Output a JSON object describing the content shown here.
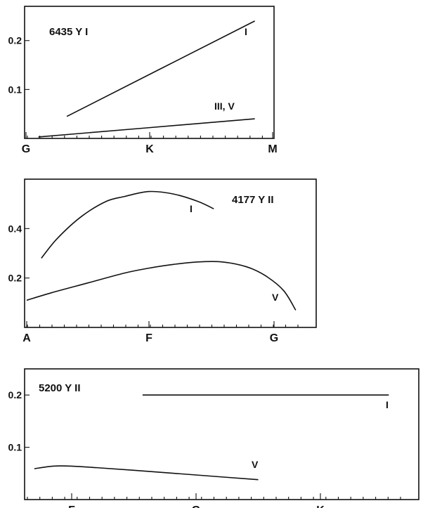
{
  "chart_data": [
    {
      "type": "line",
      "title": "6435  Y I",
      "x_categories": [
        "G",
        "K",
        "M"
      ],
      "ylim": [
        0,
        0.27
      ],
      "y_ticks": [
        0.1,
        0.2
      ],
      "y_tick_labels": [
        "0.1",
        "0.2"
      ],
      "series": [
        {
          "name": "I",
          "x": [
            0.33,
            1.85
          ],
          "y": [
            0.045,
            0.24
          ]
        },
        {
          "name": "III, V",
          "x": [
            0.1,
            1.85
          ],
          "y": [
            0.003,
            0.04
          ]
        }
      ]
    },
    {
      "type": "line",
      "title": "4177  Y II",
      "x_categories": [
        "A",
        "F",
        "G"
      ],
      "ylim": [
        0,
        0.6
      ],
      "y_ticks": [
        0.2,
        0.4
      ],
      "y_tick_labels": [
        "0.2",
        "0.4"
      ],
      "series": [
        {
          "name": "I",
          "x": [
            0.12,
            0.25,
            0.45,
            0.65,
            0.8,
            1.0,
            1.2,
            1.4,
            1.53
          ],
          "y": [
            0.28,
            0.36,
            0.45,
            0.51,
            0.53,
            0.55,
            0.54,
            0.51,
            0.48
          ]
        },
        {
          "name": "V",
          "x": [
            0.0,
            0.2,
            0.5,
            0.8,
            1.0,
            1.2,
            1.4,
            1.6,
            1.8,
            1.95,
            2.1,
            2.2
          ],
          "y": [
            0.11,
            0.14,
            0.18,
            0.22,
            0.24,
            0.255,
            0.265,
            0.265,
            0.245,
            0.21,
            0.15,
            0.07
          ]
        }
      ]
    },
    {
      "type": "line",
      "title": "5200  Y II",
      "x_categories": [
        "F",
        "G",
        "K"
      ],
      "ylim": [
        0,
        0.25
      ],
      "y_ticks": [
        0.1,
        0.2
      ],
      "y_tick_labels": [
        "0.1",
        "0.2"
      ],
      "series": [
        {
          "name": "I",
          "x": [
            0.57,
            2.55
          ],
          "y": [
            0.2,
            0.2
          ]
        },
        {
          "name": "V",
          "x": [
            -0.3,
            -0.15,
            0.0,
            0.2,
            0.5,
            1.0,
            1.5
          ],
          "y": [
            0.059,
            0.064,
            0.064,
            0.061,
            0.056,
            0.047,
            0.038
          ]
        }
      ]
    }
  ]
}
